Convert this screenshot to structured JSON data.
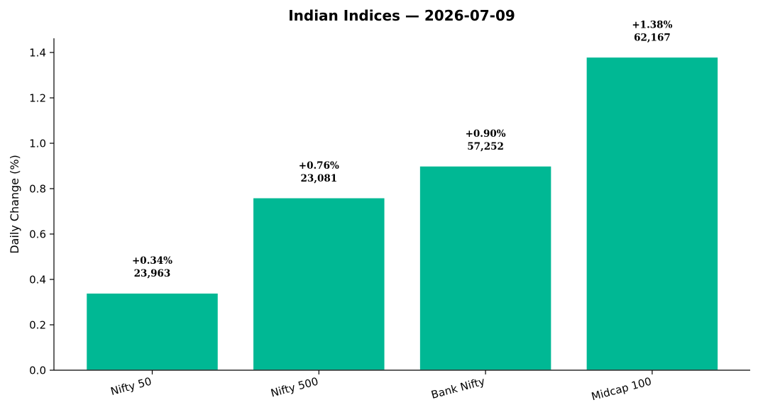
{
  "chart_data": {
    "type": "bar",
    "title": "Indian Indices — 2026-07-09",
    "xlabel": "",
    "ylabel": "Daily Change (%)",
    "ylim": [
      0,
      1.45
    ],
    "yticks": [
      0.0,
      0.2,
      0.4,
      0.6,
      0.8,
      1.0,
      1.2,
      1.4
    ],
    "ytick_labels": [
      "0.0",
      "0.2",
      "0.4",
      "0.6",
      "0.8",
      "1.0",
      "1.2",
      "1.4"
    ],
    "categories": [
      "Nifty 50",
      "Nifty 500",
      "Bank Nifty",
      "Midcap 100"
    ],
    "values": [
      0.34,
      0.76,
      0.9,
      1.38
    ],
    "data_labels": [
      {
        "change": "+0.34%",
        "level": "23,963"
      },
      {
        "change": "+0.76%",
        "level": "23,081"
      },
      {
        "change": "+0.90%",
        "level": "57,252"
      },
      {
        "change": "+1.38%",
        "level": "62,167"
      }
    ],
    "bar_color": "#00b894",
    "grid": false,
    "legend": "none"
  }
}
